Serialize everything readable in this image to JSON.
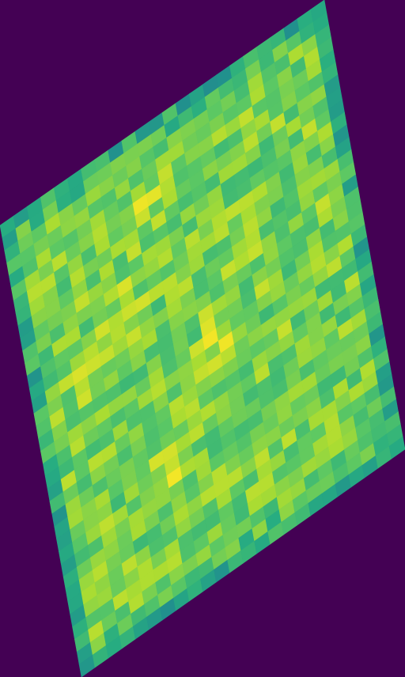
{
  "image": {
    "background_color": "#440154",
    "colormap": "viridis",
    "grid": {
      "rows": 36,
      "cols": 24
    },
    "pattern_seed": 7
  }
}
